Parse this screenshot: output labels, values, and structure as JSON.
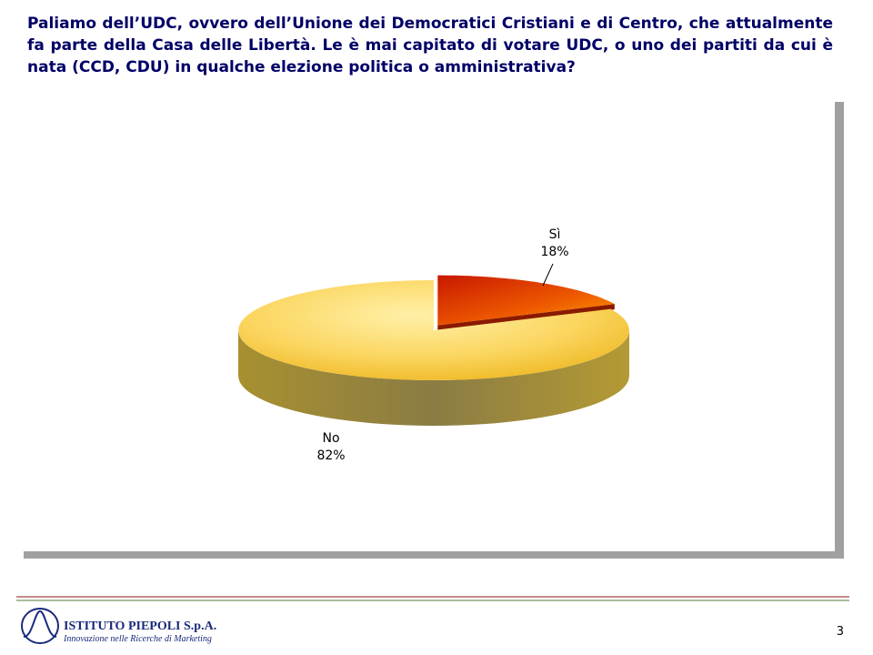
{
  "chart_data": {
    "type": "pie",
    "title": "Paliamo dell’UDC, ovvero dell’Unione dei Democratici Cristiani e di Centro, che attualmente fa parte della Casa delle Libertà. Le è mai capitato di votare UDC, o uno dei partiti da cui è nata (CCD, CDU) in qualche elezione politica o amministrativa?",
    "categories": [
      "Sì",
      "No"
    ],
    "values": [
      18,
      82
    ],
    "value_labels": [
      "18%",
      "82%"
    ],
    "colors": [
      "#e83a00",
      "#f7c634"
    ]
  },
  "footer": {
    "company": "ISTITUTO PIEPOLI S.p.A.",
    "tagline": "Innovazione nelle Ricerche di Marketing",
    "page_number": "3"
  }
}
